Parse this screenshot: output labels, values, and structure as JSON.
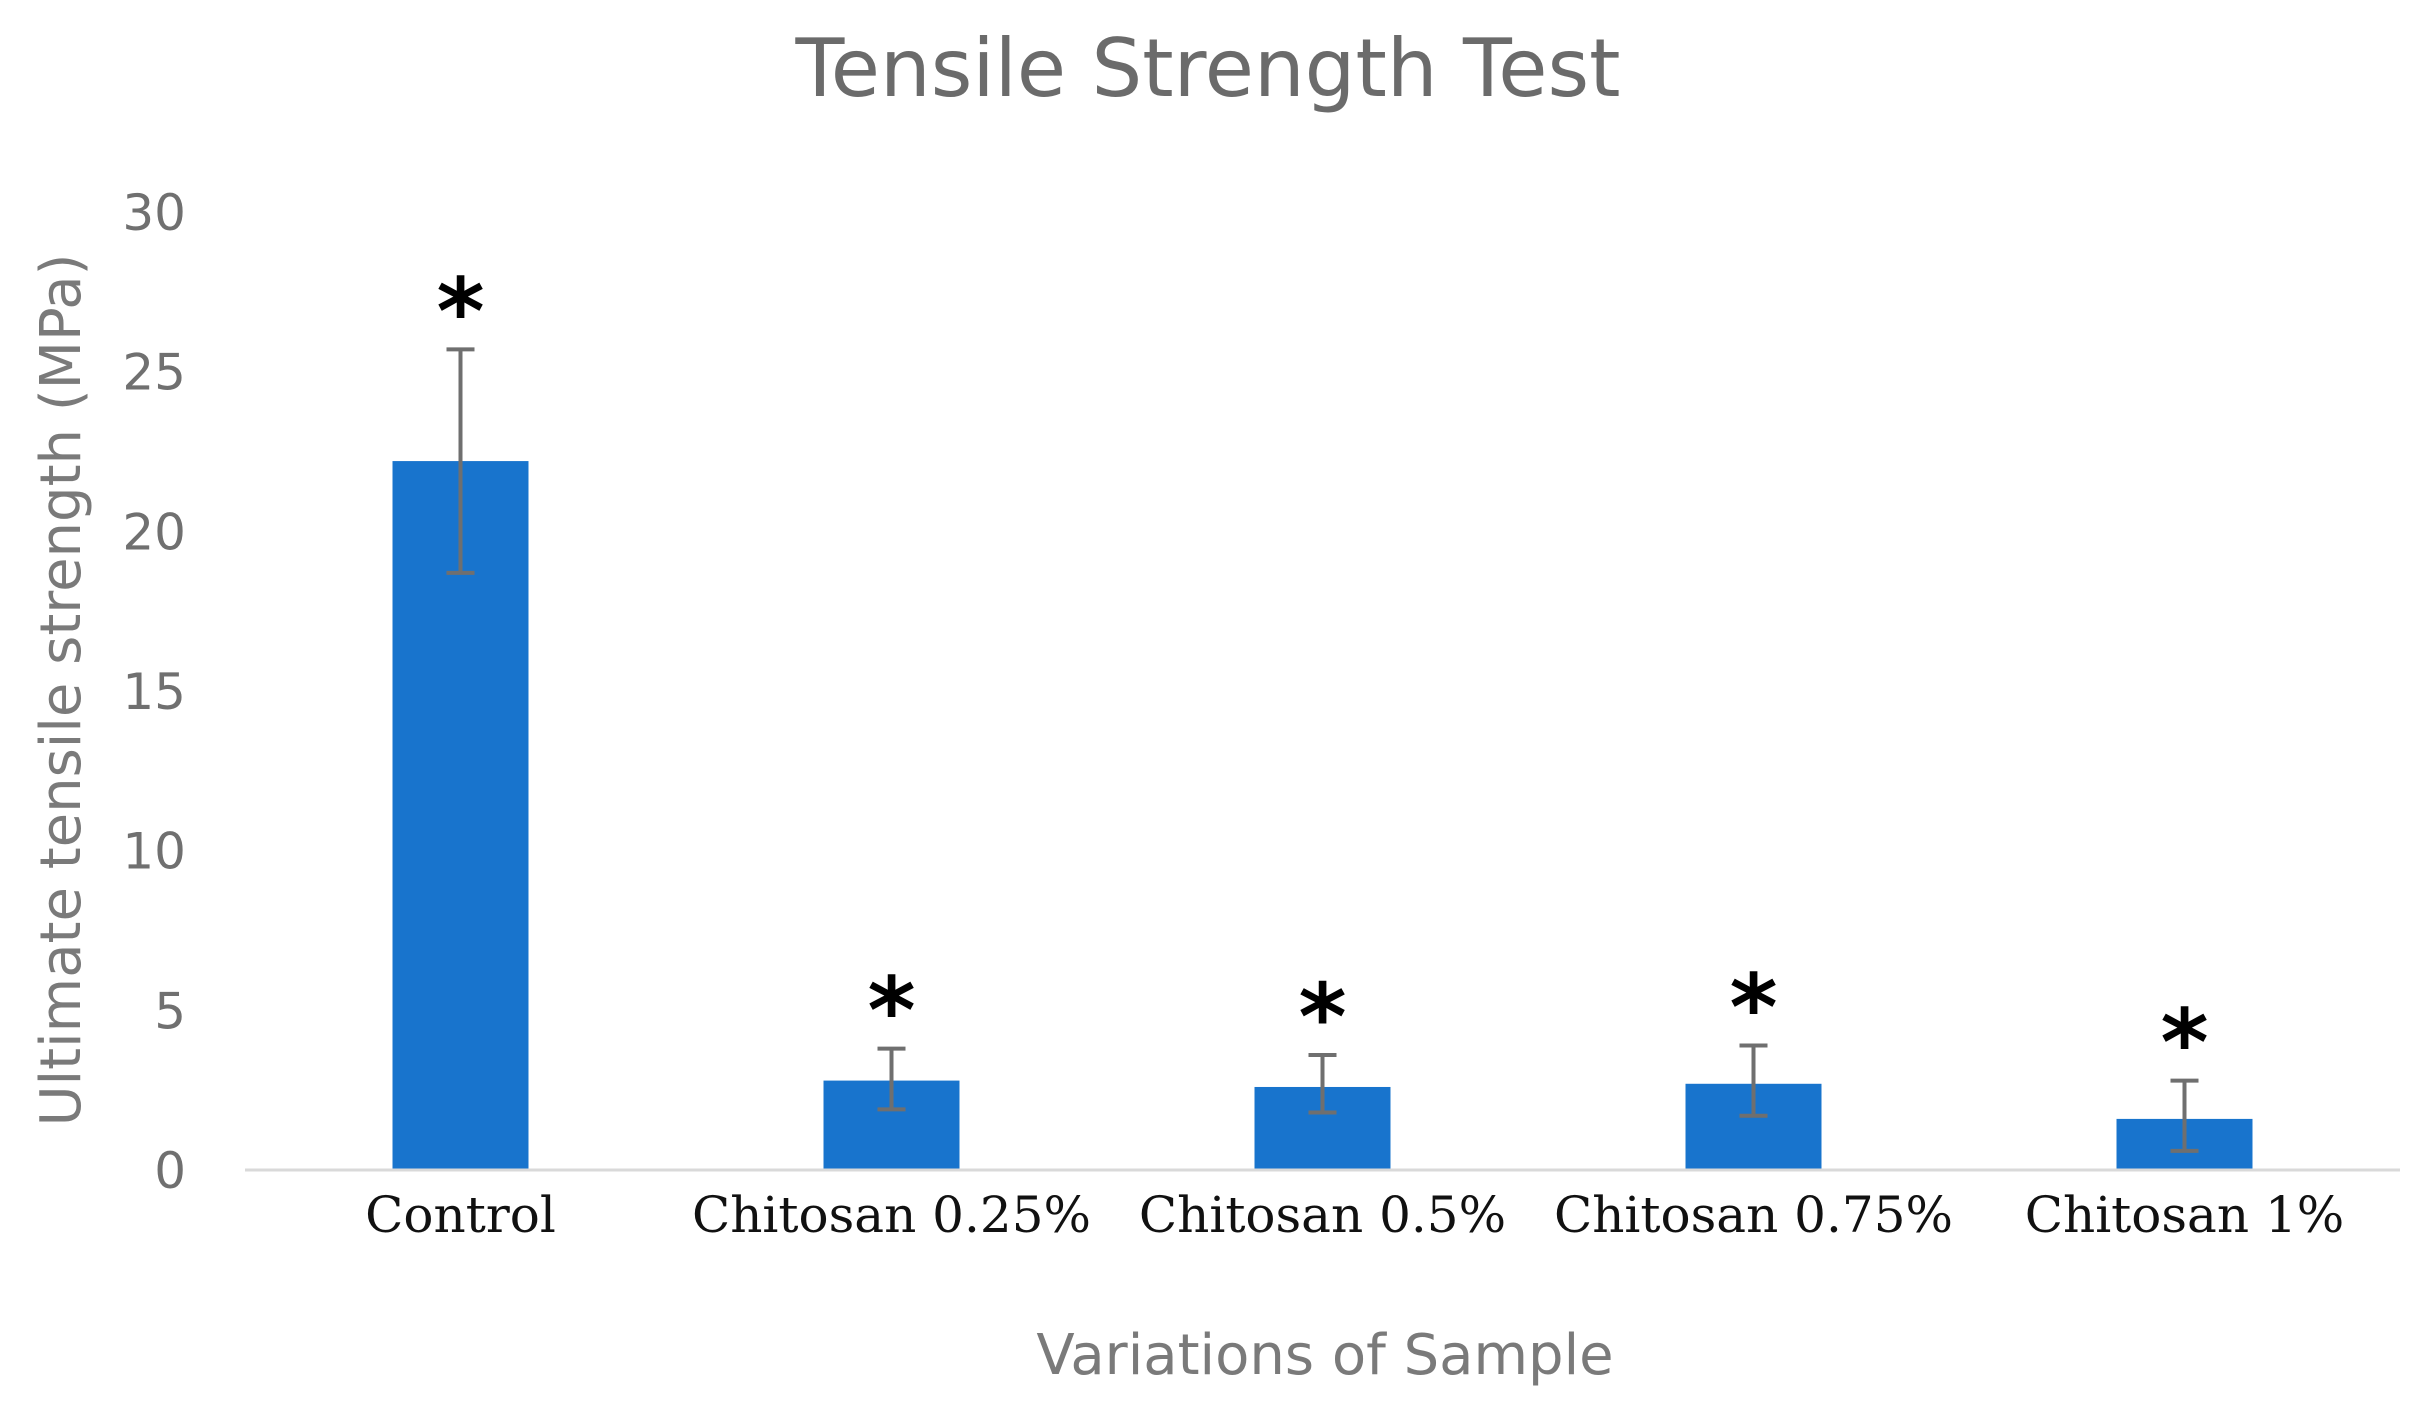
{
  "chart_data": {
    "type": "bar",
    "title": "Tensile Strength Test",
    "xlabel": "Variations of Sample",
    "ylabel": "Ultimate tensile strength (MPa)",
    "ylim": [
      0,
      30
    ],
    "yticks": [
      "0",
      "5",
      "10",
      "15",
      "20",
      "25",
      "30"
    ],
    "categories": [
      "Control",
      "Chitosan 0.25%",
      "Chitosan 0.5%",
      "Chitosan 0.75%",
      "Chitosan 1%"
    ],
    "values": [
      22.2,
      2.8,
      2.6,
      2.7,
      1.6
    ],
    "error_low": [
      18.7,
      1.9,
      1.8,
      1.7,
      0.6
    ],
    "error_high": [
      25.7,
      3.8,
      3.6,
      3.9,
      2.8
    ],
    "markers": [
      "*",
      "*",
      "*",
      "*",
      "*"
    ],
    "bar_color": "#1874cd",
    "error_color": "#6f6f6f",
    "axis_color": "#d9d9d9",
    "grid": false,
    "legend": "none"
  }
}
